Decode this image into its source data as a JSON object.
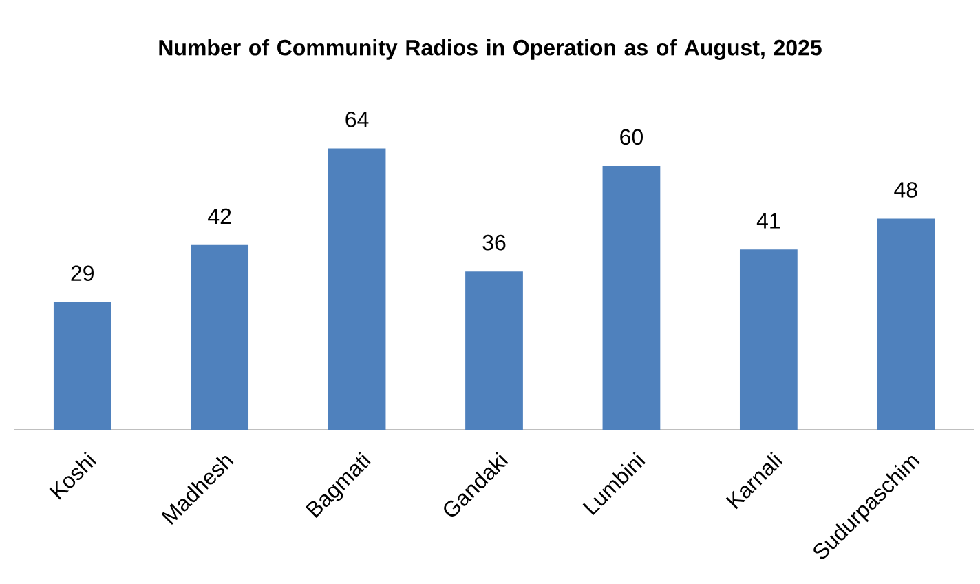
{
  "chart_data": {
    "type": "bar",
    "title": "Number of Community Radios in Operation as of August, 2025",
    "categories": [
      "Koshi",
      "Madhesh",
      "Bagmati",
      "Gandaki",
      "Lumbini",
      "Karnali",
      "Sudurpaschim"
    ],
    "values": [
      29,
      42,
      64,
      36,
      60,
      41,
      48
    ],
    "color": "#4f81bd",
    "data_labels": true,
    "tick_labels": "x"
  }
}
